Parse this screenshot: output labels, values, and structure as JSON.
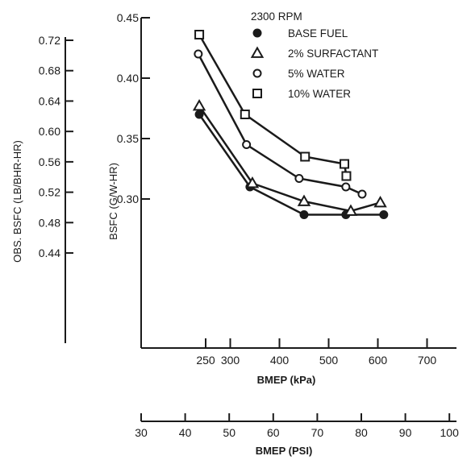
{
  "chart_data": {
    "type": "line",
    "condition_label": "2300 RPM",
    "x_axis_primary": {
      "label": "BMEP (kPa)",
      "range": [
        225,
        700
      ],
      "ticks": [
        "250",
        "300",
        "400",
        "500",
        "600",
        "700"
      ],
      "tick_values": [
        250,
        300,
        400,
        500,
        600,
        700
      ]
    },
    "x_axis_secondary": {
      "label": "BMEP (PSI)",
      "range": [
        30,
        100
      ],
      "ticks": [
        "30",
        "40",
        "50",
        "60",
        "70",
        "80",
        "90",
        "100"
      ],
      "tick_values": [
        30,
        40,
        50,
        60,
        70,
        80,
        90,
        100
      ]
    },
    "y_axis_primary": {
      "label": "BSFC (G/W-HR)",
      "range": [
        0.28,
        0.45
      ],
      "ticks": [
        "0.45",
        "0.40",
        "0.35",
        "0.30"
      ],
      "tick_values": [
        0.45,
        0.4,
        0.35,
        0.3
      ]
    },
    "y_axis_secondary": {
      "label": "OBS. BSFC (LB/BHR-HR)",
      "range": [
        0.44,
        0.73
      ],
      "ticks": [
        "0.72",
        "0.68",
        "0.64",
        "0.60",
        "0.56",
        "0.52",
        "0.48",
        "0.44"
      ],
      "tick_values": [
        0.72,
        0.68,
        0.64,
        0.6,
        0.56,
        0.52,
        0.48,
        0.44
      ]
    },
    "legend_position": "top-right",
    "series": [
      {
        "name": "BASE FUEL",
        "marker": "filled-circle",
        "x": [
          237,
          340,
          450,
          535,
          612
        ],
        "y": [
          0.37,
          0.31,
          0.287,
          0.287,
          0.287
        ]
      },
      {
        "name": "2% SURFACTANT",
        "marker": "triangle",
        "x": [
          237,
          345,
          450,
          545,
          605
        ],
        "y": [
          0.377,
          0.313,
          0.298,
          0.29,
          0.297
        ]
      },
      {
        "name": "5% WATER",
        "marker": "open-circle",
        "x": [
          235,
          333,
          440,
          535,
          568
        ],
        "y": [
          0.42,
          0.345,
          0.317,
          0.31,
          0.304
        ]
      },
      {
        "name": "10% WATER",
        "marker": "square",
        "x": [
          237,
          330,
          452,
          532,
          536
        ],
        "y": [
          0.436,
          0.37,
          0.335,
          0.329,
          0.319
        ]
      }
    ]
  }
}
